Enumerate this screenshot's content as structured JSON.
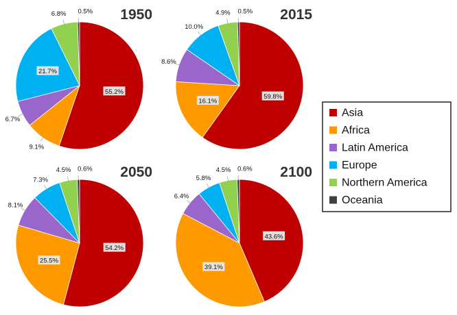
{
  "chart_data": {
    "type": "pie",
    "categories": [
      "Asia",
      "Africa",
      "Latin America",
      "Europe",
      "Northern America",
      "Oceania"
    ],
    "colors": [
      "#c00000",
      "#ff9900",
      "#9966cc",
      "#00b0f0",
      "#92d050",
      "#404040"
    ],
    "legend": {
      "placement": "right"
    },
    "charts": [
      {
        "title": "1950",
        "values": [
          55.2,
          9.1,
          6.7,
          21.7,
          6.8,
          0.5
        ],
        "labels": [
          "55.2%",
          "9.1%",
          "6.7%",
          "21.7%",
          "6.8%",
          "0.5%"
        ]
      },
      {
        "title": "2015",
        "values": [
          59.8,
          16.1,
          8.6,
          10.0,
          4.9,
          0.5
        ],
        "labels": [
          "59.8%",
          "16.1%",
          "8.6%",
          "10.0%",
          "4.9%",
          "0.5%"
        ]
      },
      {
        "title": "2050",
        "values": [
          54.2,
          25.5,
          8.1,
          7.3,
          4.5,
          0.6
        ],
        "labels": [
          "54.2%",
          "25.5%",
          "8.1%",
          "7.3%",
          "4.5%",
          "0.6%"
        ]
      },
      {
        "title": "2100",
        "values": [
          43.6,
          39.1,
          6.4,
          5.8,
          4.5,
          0.6
        ],
        "labels": [
          "43.6%",
          "39.1%",
          "6.4%",
          "5.8%",
          "4.5%",
          "0.6%"
        ]
      }
    ]
  }
}
